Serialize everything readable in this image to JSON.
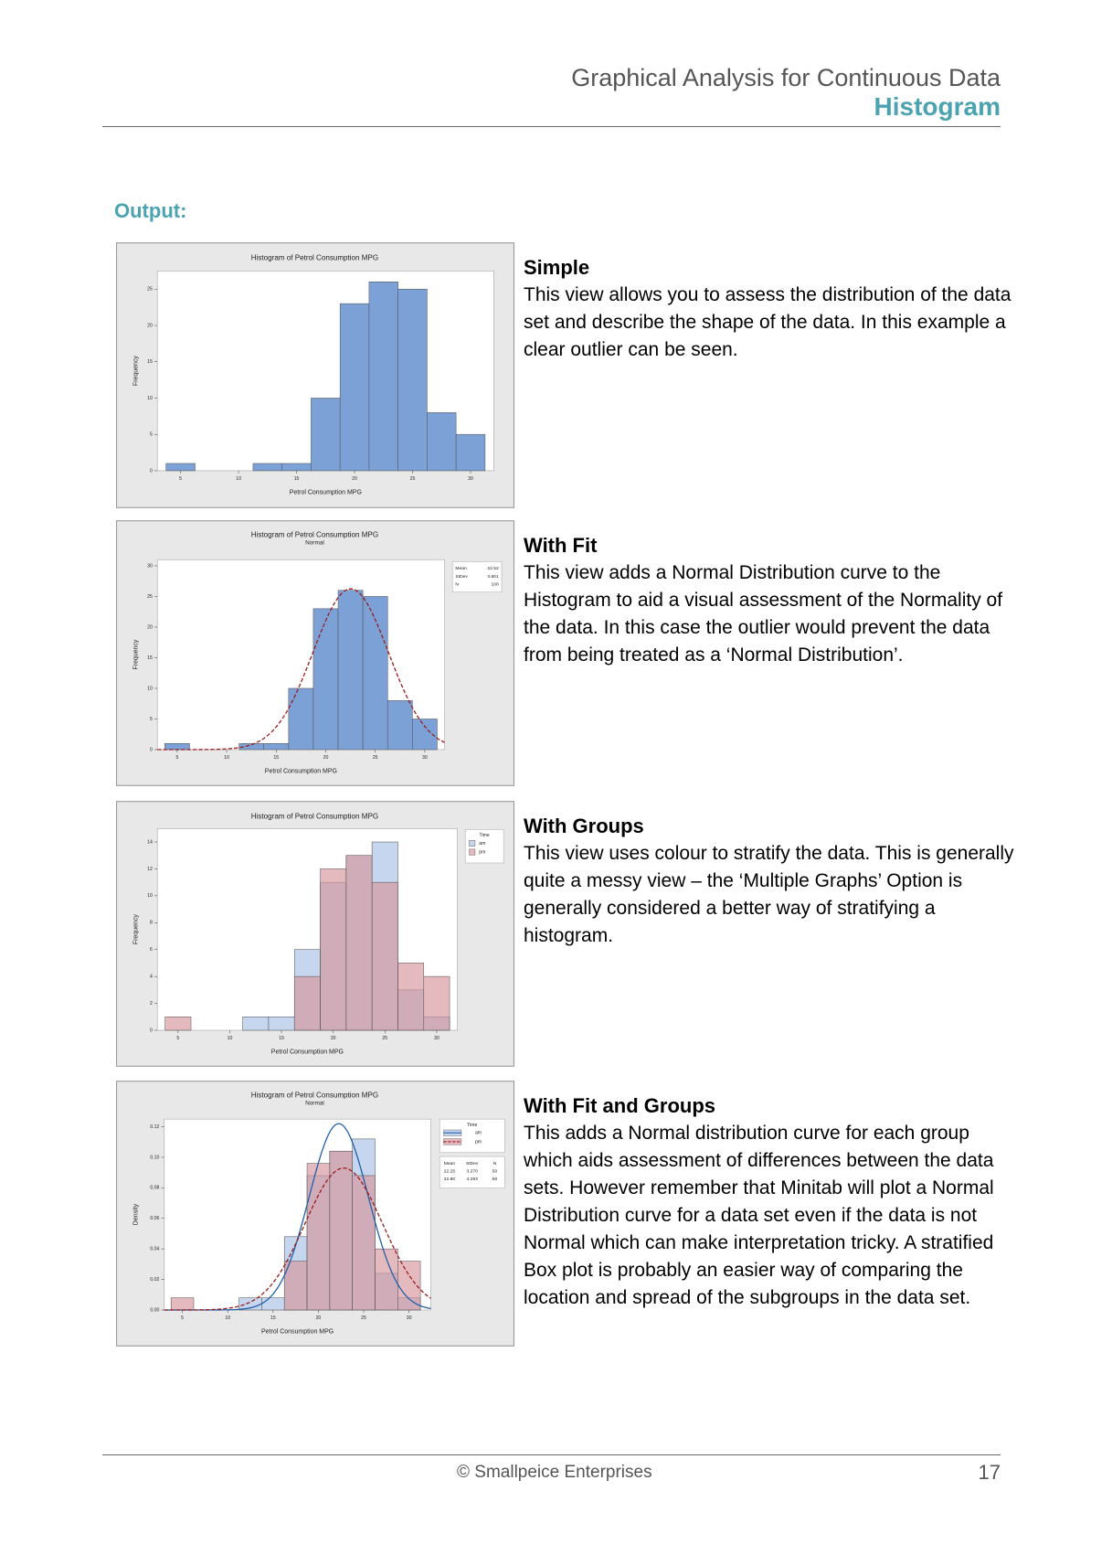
{
  "header": {
    "title": "Graphical Analysis for Continuous Data",
    "subtitle": "Histogram"
  },
  "section_label": "Output:",
  "panels": [
    {
      "heading": "Simple",
      "text": "This view allows you to assess the distribution of the data set and describe the shape of the data. In this example a clear outlier can be seen.",
      "chart": {
        "type": "histogram",
        "title": "Histogram of Petrol Consumption MPG",
        "x_label": "Petrol Consumption MPG",
        "y_label": "Frequency",
        "histnorm": "count",
        "bins": [
          3.75,
          6.25,
          8.75,
          11.25,
          13.75,
          16.25,
          18.75,
          21.25,
          23.75,
          26.25,
          28.75,
          31.25
        ],
        "series": [
          {
            "color": "#7ba1d6",
            "values": [
              1,
              0,
              0,
              1,
              1,
              10,
              23,
              26,
              25,
              8,
              5
            ]
          }
        ],
        "xlim": [
          3,
          32
        ],
        "xticks": [
          5,
          10,
          15,
          20,
          25,
          30
        ],
        "ylim": [
          0,
          27.5
        ],
        "yticks": [
          0,
          5,
          10,
          15,
          20,
          25
        ]
      }
    },
    {
      "heading": "With Fit",
      "text": "This view adds a Normal Distribution curve to the Histogram to aid a visual assessment of the Normality of the data. In this case the outlier would prevent the data from being treated as a ‘Normal Distribution’.",
      "chart": {
        "type": "histogram",
        "title": "Histogram of Petrol Consumption MPG",
        "subtitle": "Normal",
        "x_label": "Petrol Consumption MPG",
        "y_label": "Frequency",
        "histnorm": "count",
        "bins": [
          3.75,
          6.25,
          8.75,
          11.25,
          13.75,
          16.25,
          18.75,
          21.25,
          23.75,
          26.25,
          28.75,
          31.25
        ],
        "stats_labels": [
          "Mean",
          "StDev",
          "N"
        ],
        "series": [
          {
            "color": "#7ba1d6",
            "values": [
              1,
              0,
              0,
              1,
              1,
              10,
              23,
              26,
              25,
              8,
              5
            ],
            "fit": {
              "mean": 22.52,
              "stdev": 3.801,
              "n": 100
            },
            "fit_color": "#9b1c1c",
            "fit_dash": true
          }
        ],
        "xlim": [
          3,
          32
        ],
        "xticks": [
          5,
          10,
          15,
          20,
          25,
          30
        ],
        "ylim": [
          0,
          31
        ],
        "yticks": [
          0,
          5,
          10,
          15,
          20,
          25,
          30
        ]
      }
    },
    {
      "heading": "With Groups",
      "text": "This view uses colour to stratify the data. This is generally quite a messy view – the ‘Multiple Graphs’ Option is generally considered a better way of stratifying a histogram.",
      "chart": {
        "type": "histogram",
        "title": "Histogram of Petrol Consumption MPG",
        "x_label": "Petrol Consumption MPG",
        "y_label": "Frequency",
        "histnorm": "count",
        "legend_title": "Time",
        "bins": [
          3.75,
          6.25,
          8.75,
          11.25,
          13.75,
          16.25,
          18.75,
          21.25,
          23.75,
          26.25,
          28.75,
          31.25
        ],
        "series": [
          {
            "name": "am",
            "color": "#c6d6ee",
            "values": [
              0,
              0,
              0,
              1,
              1,
              6,
              11,
              13,
              14,
              3,
              1
            ]
          },
          {
            "name": "pm",
            "color": "#d5959d",
            "opacity": 0.65,
            "values": [
              1,
              0,
              0,
              0,
              0,
              4,
              12,
              13,
              11,
              5,
              4
            ]
          }
        ],
        "xlim": [
          3,
          32
        ],
        "xticks": [
          5,
          10,
          15,
          20,
          25,
          30
        ],
        "ylim": [
          0,
          15
        ],
        "yticks": [
          0,
          2,
          4,
          6,
          8,
          10,
          12,
          14
        ]
      }
    },
    {
      "heading": "With Fit and Groups",
      "text": "This adds a Normal distribution curve for each group which aids assessment of differences between the data sets. However remember that Minitab will plot a Normal Distribution curve for a data set even if the data is not Normal which can make interpretation tricky. A stratified Box plot is probably an easier way of comparing the location and spread of the subgroups in the data set.",
      "chart": {
        "type": "histogram",
        "title": "Histogram of Petrol Consumption MPG",
        "subtitle": "Normal",
        "x_label": "Petrol Consumption MPG",
        "y_label": "Density",
        "histnorm": "density",
        "legend_title": "Time",
        "bins": [
          3.75,
          6.25,
          8.75,
          11.25,
          13.75,
          16.25,
          18.75,
          21.25,
          23.75,
          26.25,
          28.75,
          31.25
        ],
        "stats_labels": [
          "Mean",
          "StDev",
          "N"
        ],
        "series": [
          {
            "name": "am",
            "color": "#c6d6ee",
            "values": [
              0,
              0,
              0,
              0.008,
              0.008,
              0.048,
              0.088,
              0.104,
              0.112,
              0.024,
              0.008
            ],
            "fit": {
              "mean": 22.25,
              "stdev": {
                "value": 3.27,
                "label": "3.270"
              },
              "n": 50
            },
            "fit_color": "#1f5fa8",
            "fit_dash": false
          },
          {
            "name": "pm",
            "color": "#d5959d",
            "opacity": 0.65,
            "values": [
              0.008,
              0,
              0,
              0,
              0,
              0.032,
              0.096,
              0.104,
              0.088,
              0.04,
              0.032
            ],
            "fit": {
              "mean": {
                "value": 22.8,
                "label": "22.80"
              },
              "stdev": 4.293,
              "n": 50
            },
            "fit_color": "#9b1c1c",
            "fit_dash": true
          }
        ],
        "xlim": [
          3,
          32.4
        ],
        "xticks": [
          5,
          10,
          15,
          20,
          25,
          30
        ],
        "ylim": [
          0,
          0.125
        ],
        "yticks": [
          {
            "value": 0,
            "label": "0.00"
          },
          {
            "value": 0.02,
            "label": "0.02"
          },
          {
            "value": 0.04,
            "label": "0.04"
          },
          {
            "value": 0.06,
            "label": "0.06"
          },
          {
            "value": 0.08,
            "label": "0.08"
          },
          {
            "value": 0.1,
            "label": "0.10"
          },
          {
            "value": 0.12,
            "label": "0.12"
          }
        ]
      }
    }
  ],
  "footer": {
    "copyright": "© Smallpeice Enterprises",
    "page": "17"
  }
}
